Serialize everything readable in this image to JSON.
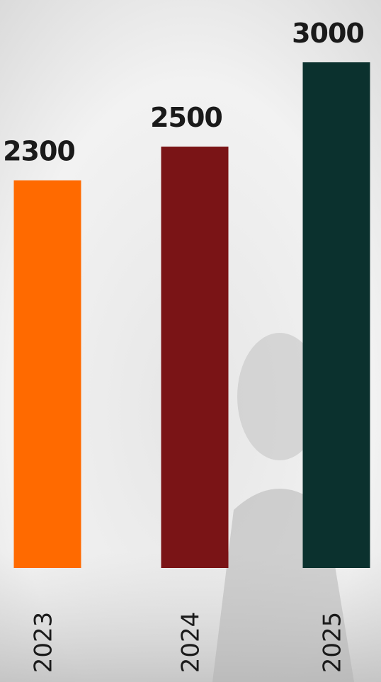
{
  "chart_data": {
    "type": "bar",
    "categories": [
      "2023",
      "2024",
      "2025"
    ],
    "values": [
      2300,
      2500,
      3000
    ],
    "colors": [
      "#ff6a00",
      "#7a1416",
      "#0b312e"
    ]
  }
}
